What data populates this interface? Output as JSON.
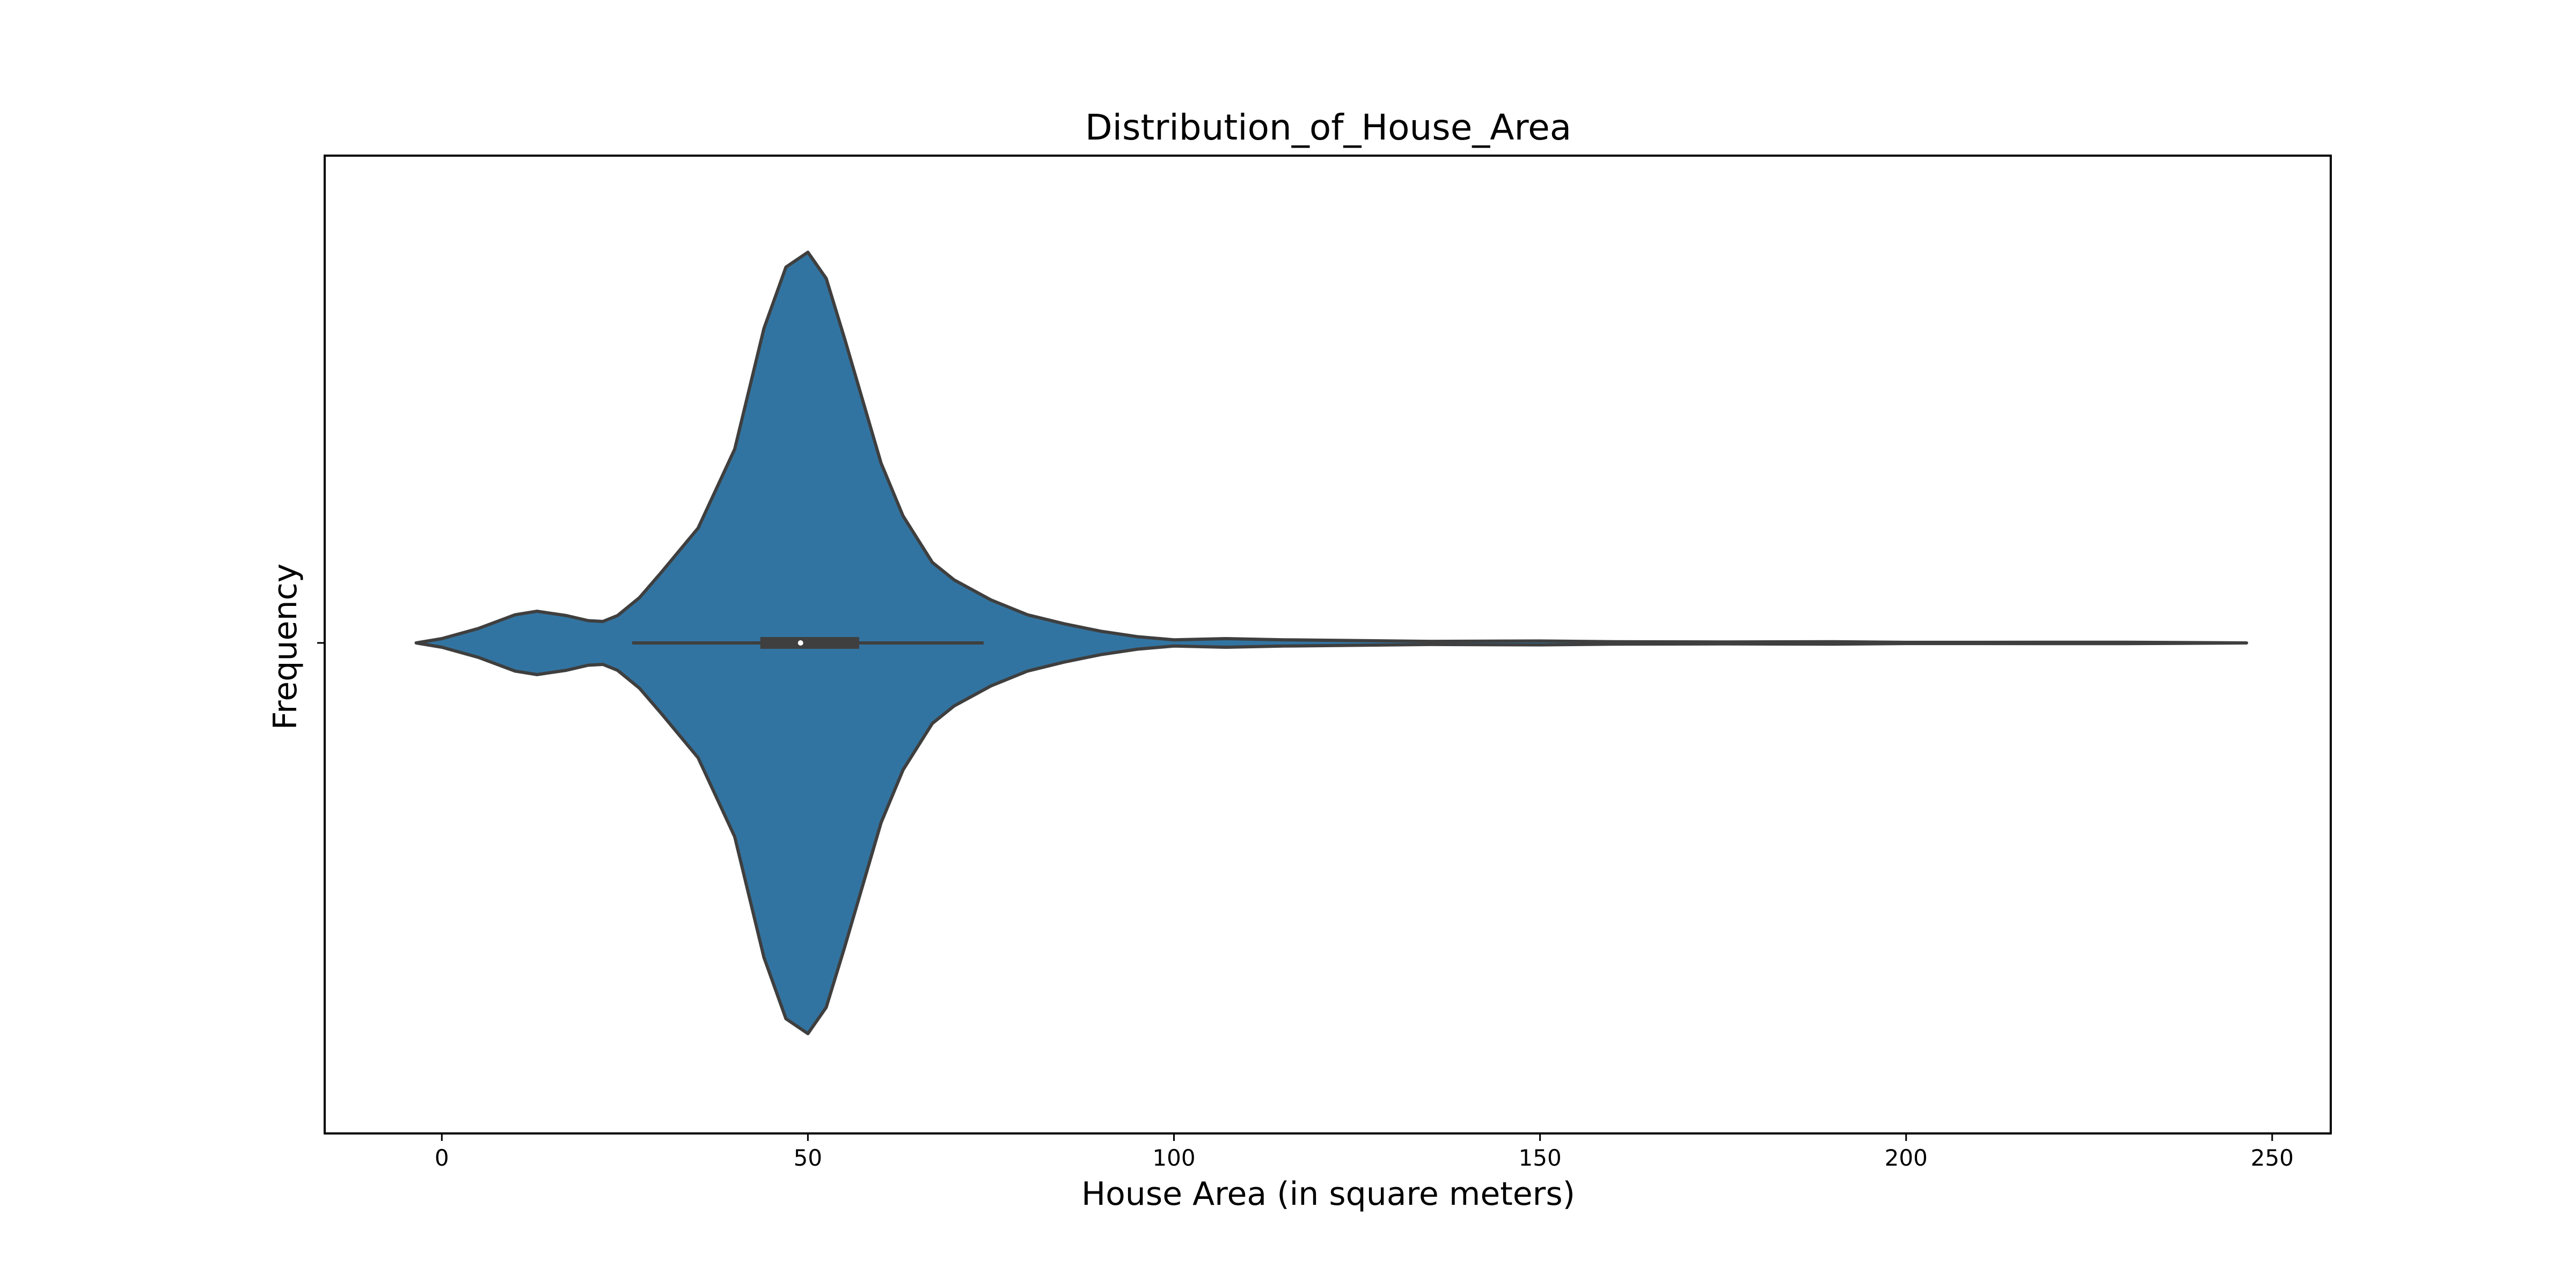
{
  "chart_data": {
    "type": "violin",
    "title": "Distribution_of_House_Area",
    "xlabel": "House Area (in square meters)",
    "ylabel": "Frequency",
    "xlim": [
      -16,
      258
    ],
    "xticks": [
      0,
      50,
      100,
      150,
      200,
      250
    ],
    "xtick_labels": [
      "0",
      "50",
      "100",
      "150",
      "200",
      "250"
    ],
    "grid": false,
    "legend": "none",
    "colors": {
      "violin_fill": "#3274a1",
      "violin_edge": "#3f3f3f",
      "box": "#3f3f3f",
      "median_marker": "#ffffff",
      "axes": "#000000"
    },
    "violin": {
      "density_profile": {
        "x": [
          -3.5,
          0,
          5,
          10,
          13,
          17,
          20,
          22,
          24,
          27,
          30,
          35,
          40,
          44,
          47,
          50,
          52.5,
          55,
          60,
          63,
          67,
          70,
          75,
          80,
          85,
          90,
          95,
          100,
          107,
          115,
          125,
          135,
          150,
          160,
          175,
          190,
          200,
          230,
          246.5
        ],
        "relative_width": [
          0,
          0.011,
          0.037,
          0.072,
          0.081,
          0.07,
          0.057,
          0.055,
          0.07,
          0.116,
          0.181,
          0.294,
          0.496,
          0.805,
          0.962,
          1.0,
          0.933,
          0.78,
          0.46,
          0.325,
          0.206,
          0.161,
          0.11,
          0.072,
          0.049,
          0.03,
          0.016,
          0.008,
          0.011,
          0.008,
          0.006,
          0.004,
          0.005,
          0.003,
          0.0025,
          0.003,
          0.0015,
          0.0018,
          0
        ]
      },
      "box": {
        "whisker_low": 26,
        "q1": 43.5,
        "median": 49,
        "q3": 57,
        "whisker_high": 74
      }
    }
  }
}
